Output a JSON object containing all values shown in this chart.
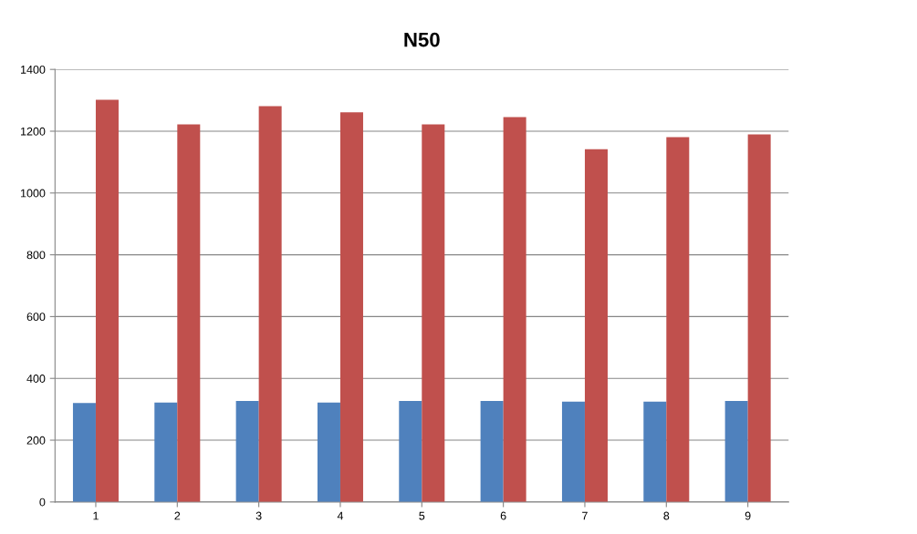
{
  "chart_data": {
    "type": "bar",
    "title": "N50",
    "categories": [
      "1",
      "2",
      "3",
      "4",
      "5",
      "6",
      "7",
      "8",
      "9"
    ],
    "series": [
      {
        "color": "#4f81bd",
        "values": [
          320,
          322,
          327,
          322,
          327,
          327,
          325,
          325,
          327
        ]
      },
      {
        "color": "#c0504d",
        "values": [
          1302,
          1222,
          1281,
          1261,
          1222,
          1246,
          1142,
          1181,
          1190
        ]
      }
    ],
    "ylim": [
      0,
      1400
    ],
    "yticks": [
      0,
      200,
      400,
      600,
      800,
      1000,
      1200,
      1400
    ],
    "grid": "y"
  }
}
